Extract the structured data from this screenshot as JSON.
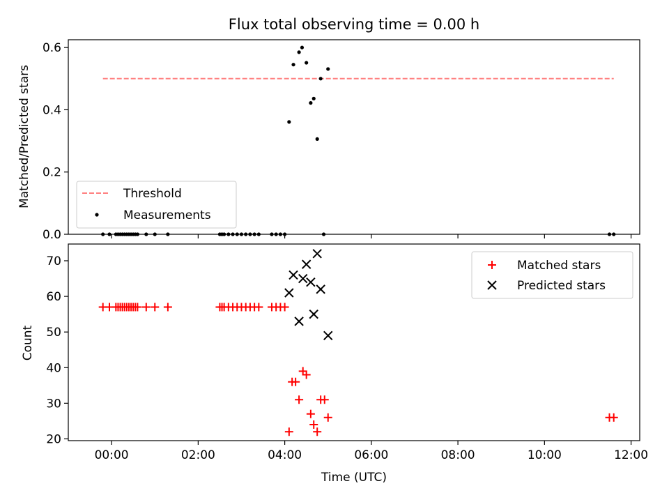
{
  "chart_data": [
    {
      "type": "scatter",
      "title": "Flux total observing time = 0.00 h",
      "xlabel": "",
      "ylabel": "Matched/Predicted stars",
      "xlim": [
        -1.0,
        12.2
      ],
      "ylim": [
        0,
        0.625
      ],
      "yticks": [
        0.0,
        0.2,
        0.4,
        0.6
      ],
      "ytick_labels": [
        "0.0",
        "0.2",
        "0.4",
        "0.6"
      ],
      "grid": false,
      "legend_position": "bottom-left",
      "threshold": {
        "name": "Threshold",
        "value": 0.5,
        "x_range": [
          -0.2,
          11.6
        ],
        "color": "#ff7f7f"
      },
      "series": [
        {
          "name": "Measurements",
          "color": "#000000",
          "marker": "dot",
          "x": [
            -0.2,
            -0.05,
            0.1,
            0.15,
            0.2,
            0.25,
            0.3,
            0.35,
            0.4,
            0.45,
            0.5,
            0.55,
            0.6,
            0.8,
            1.0,
            1.3,
            2.5,
            2.55,
            2.6,
            2.7,
            2.8,
            2.9,
            3.0,
            3.1,
            3.2,
            3.3,
            3.4,
            3.7,
            3.8,
            3.9,
            4.0,
            4.1,
            4.2,
            4.33,
            4.4,
            4.5,
            4.6,
            4.67,
            4.75,
            4.83,
            4.9,
            5.0,
            11.5,
            11.6
          ],
          "y": [
            0,
            0,
            0,
            0,
            0,
            0,
            0,
            0,
            0,
            0,
            0,
            0,
            0,
            0,
            0,
            0,
            0,
            0,
            0,
            0,
            0,
            0,
            0,
            0,
            0,
            0,
            0,
            0,
            0,
            0,
            0,
            0.361,
            0.545,
            0.585,
            0.6,
            0.551,
            0.422,
            0.436,
            0.306,
            0.5,
            0,
            0.531,
            0,
            0
          ]
        }
      ]
    },
    {
      "type": "scatter",
      "title": "",
      "xlabel": "Time (UTC)",
      "ylabel": "Count",
      "xlim": [
        -1.0,
        12.2
      ],
      "ylim": [
        19.5,
        74.7
      ],
      "yticks": [
        20,
        30,
        40,
        50,
        60,
        70
      ],
      "ytick_labels": [
        "20",
        "30",
        "40",
        "50",
        "60",
        "70"
      ],
      "xticks": [
        0,
        2,
        4,
        6,
        8,
        10,
        12
      ],
      "xtick_labels": [
        "00:00",
        "02:00",
        "04:00",
        "06:00",
        "08:00",
        "10:00",
        "12:00"
      ],
      "grid": false,
      "legend_position": "top-right",
      "series": [
        {
          "name": "Matched stars",
          "color": "#ff0000",
          "marker": "plus",
          "x": [
            -0.2,
            -0.05,
            0.1,
            0.15,
            0.2,
            0.25,
            0.3,
            0.35,
            0.4,
            0.45,
            0.5,
            0.55,
            0.6,
            0.8,
            1.0,
            1.3,
            2.5,
            2.55,
            2.6,
            2.7,
            2.8,
            2.9,
            3.0,
            3.1,
            3.2,
            3.3,
            3.4,
            3.7,
            3.8,
            3.9,
            4.0,
            4.1,
            4.17,
            4.25,
            4.33,
            4.42,
            4.5,
            4.6,
            4.67,
            4.75,
            4.83,
            4.92,
            5.0,
            11.5,
            11.6
          ],
          "y": [
            57,
            57,
            57,
            57,
            57,
            57,
            57,
            57,
            57,
            57,
            57,
            57,
            57,
            57,
            57,
            57,
            57,
            57,
            57,
            57,
            57,
            57,
            57,
            57,
            57,
            57,
            57,
            57,
            57,
            57,
            57,
            22,
            36,
            36,
            31,
            39,
            38,
            27,
            24,
            22,
            31,
            31,
            26,
            26,
            26
          ]
        },
        {
          "name": "Predicted stars",
          "color": "#000000",
          "marker": "x",
          "x": [
            4.1,
            4.2,
            4.33,
            4.42,
            4.5,
            4.6,
            4.67,
            4.75,
            4.83,
            5.0
          ],
          "y": [
            61,
            66,
            53,
            65,
            69,
            64,
            55,
            72,
            62,
            49
          ]
        }
      ]
    }
  ]
}
